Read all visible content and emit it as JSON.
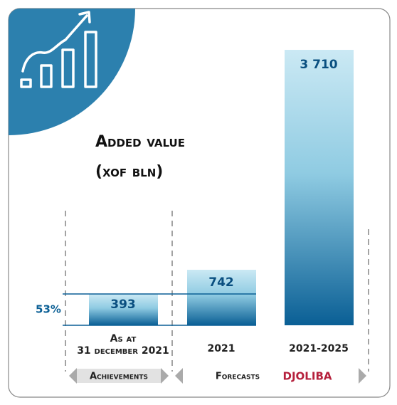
{
  "title": [
    "Added value",
    "(xof bln)"
  ],
  "bars": [
    {
      "value": "393",
      "label": [
        "As at",
        "31 december 2021"
      ]
    },
    {
      "value": "742",
      "label": [
        "2021"
      ]
    },
    {
      "value": "3 710",
      "label": [
        "2021-2025"
      ]
    }
  ],
  "share": "53%",
  "footer": {
    "achievements": "Achievements",
    "forecasts": "Forecasts",
    "brand": "DJOLIBA"
  }
}
